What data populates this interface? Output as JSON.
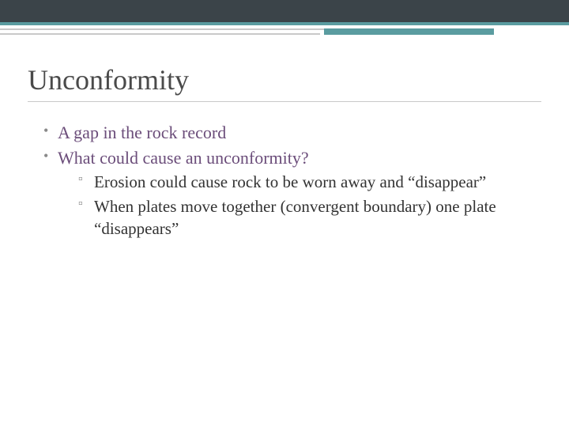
{
  "theme": {
    "top_band_color": "#3b4449",
    "accent_color": "#5a9ca0",
    "divider_color": "#c9c9c9",
    "title_color": "#4a4a4a",
    "l1_text_color": "#6b4d7a",
    "l2_text_color": "#333333",
    "background_color": "#ffffff"
  },
  "slide": {
    "title": "Unconformity",
    "bullets": [
      {
        "text": "A gap in the rock record"
      },
      {
        "text": "What could cause an unconformity?",
        "sub": [
          "Erosion could cause rock to be worn away and “disappear”",
          "When plates move together (convergent boundary) one plate “disappears”"
        ]
      }
    ]
  },
  "typography": {
    "title_fontsize": 36,
    "l1_fontsize": 22,
    "l2_fontsize": 21,
    "font_family": "Georgia"
  }
}
